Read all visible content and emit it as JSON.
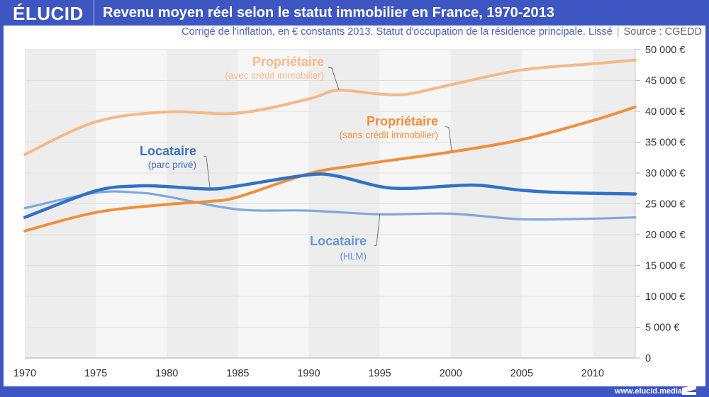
{
  "header": {
    "logo": "ÉLUCID",
    "title": "Revenu moyen réel selon le statut immobilier en France, 1970-2013"
  },
  "subtitle": {
    "text": "Corrigé de l'inflation, en € constants 2013. Statut d'occupation de la résidence principale. Lissé",
    "separator": "|",
    "source": "Source : CGEDD"
  },
  "footer": {
    "url": "www.elucid.media"
  },
  "colors": {
    "brand": "#3d56c2",
    "proprietaire_avec_credit": "#f5b887",
    "proprietaire_sans_credit": "#ef8f3c",
    "locataire_prive": "#3272c6",
    "locataire_hlm": "#7fa8dc"
  },
  "chart_data": {
    "type": "line",
    "title": "Revenu moyen réel selon le statut immobilier en France, 1970-2013",
    "subtitle": "Corrigé de l'inflation, en € constants 2013. Statut d'occupation de la résidence principale. Lissé",
    "xlabel": "",
    "ylabel": "",
    "xlim": [
      1970,
      2013
    ],
    "ylim": [
      0,
      50000
    ],
    "x_ticks": [
      1970,
      1975,
      1980,
      1985,
      1990,
      1995,
      2000,
      2005,
      2010
    ],
    "x_tick_labels": [
      "1970",
      "1975",
      "1980",
      "1985",
      "1990",
      "1995",
      "2000",
      "2005",
      "2010"
    ],
    "y_ticks": [
      0,
      5000,
      10000,
      15000,
      20000,
      25000,
      30000,
      35000,
      40000,
      45000,
      50000
    ],
    "y_tick_labels": [
      "0",
      "5 000 €",
      "10 000 €",
      "15 000 €",
      "20 000 €",
      "25 000 €",
      "30 000 €",
      "35 000 €",
      "40 000 €",
      "45 000 €",
      "50 000 €"
    ],
    "y_axis_position": "right",
    "grid": true,
    "legend": "inline-annotations",
    "series": [
      {
        "name": "Propriétaire (avec crédit immobilier)",
        "label": "Propriétaire",
        "sublabel": "(avec crédit immobilier)",
        "color": "#f5b887",
        "x": [
          1970,
          1975,
          1980,
          1985,
          1990,
          1992,
          1995,
          1997,
          2000,
          2005,
          2010,
          2013
        ],
        "values": [
          33000,
          38300,
          39900,
          39700,
          42000,
          43400,
          42800,
          42800,
          44300,
          46700,
          47700,
          48300
        ]
      },
      {
        "name": "Propriétaire (sans crédit immobilier)",
        "label": "Propriétaire",
        "sublabel": "(sans crédit immobilier)",
        "color": "#ef8f3c",
        "x": [
          1970,
          1975,
          1980,
          1983,
          1985,
          1990,
          1993,
          1995,
          2000,
          2005,
          2010,
          2013
        ],
        "values": [
          20600,
          23600,
          24900,
          25400,
          26100,
          29900,
          31100,
          31800,
          33400,
          35400,
          38500,
          40700
        ]
      },
      {
        "name": "Locataire (parc privé)",
        "label": "Locataire",
        "sublabel": "(parc privé)",
        "color": "#3272c6",
        "x": [
          1970,
          1975,
          1978,
          1980,
          1983,
          1985,
          1990,
          1992,
          1995,
          1997,
          2000,
          2002,
          2005,
          2008,
          2013
        ],
        "values": [
          22800,
          27100,
          27900,
          27800,
          27400,
          27900,
          29700,
          29500,
          27800,
          27500,
          27900,
          28000,
          27200,
          26800,
          26600
        ]
      },
      {
        "name": "Locataire (HLM)",
        "label": "Locataire",
        "sublabel": "(HLM)",
        "color": "#7fa8dc",
        "x": [
          1970,
          1975,
          1978,
          1980,
          1985,
          1990,
          1995,
          2000,
          2005,
          2010,
          2013
        ],
        "values": [
          24300,
          26800,
          26800,
          26200,
          24100,
          23900,
          23300,
          23400,
          22500,
          22600,
          22800
        ]
      }
    ],
    "annotations": [
      {
        "series": 0,
        "text": "Propriétaire",
        "subtext": "(avec crédit immobilier)",
        "points_to_year": 1992
      },
      {
        "series": 1,
        "text": "Propriétaire",
        "subtext": "(sans crédit immobilier)",
        "points_to_year": 2000
      },
      {
        "series": 2,
        "text": "Locataire",
        "subtext": "(parc privé)",
        "points_to_year": 1983
      },
      {
        "series": 3,
        "text": "Locataire",
        "subtext": "(HLM)",
        "points_to_year": 1995
      }
    ]
  }
}
